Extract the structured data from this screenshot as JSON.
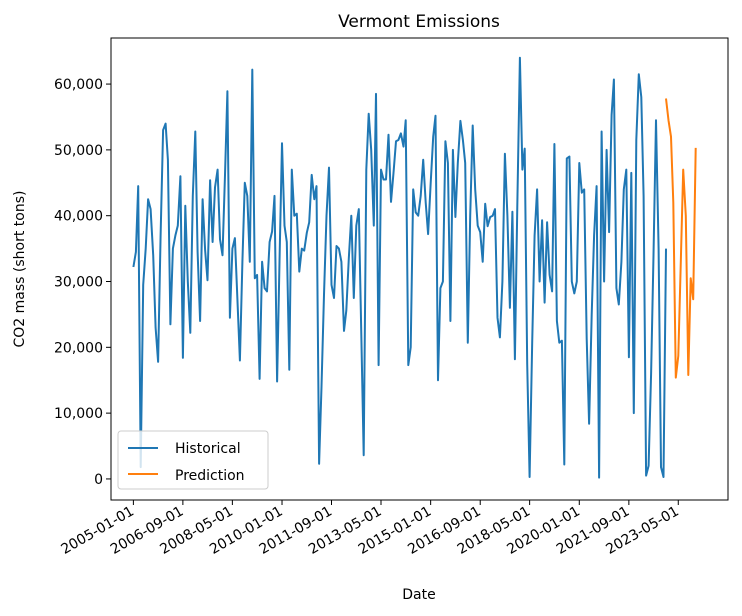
{
  "chart_data": {
    "type": "line",
    "title": "Vermont Emissions",
    "xlabel": "Date",
    "ylabel": "CO2 mass (short tons)",
    "xlim": [
      "2004-04-01",
      "2025-01-01"
    ],
    "ylim": [
      -3200,
      67000
    ],
    "x_ticks": [
      "2005-01-01",
      "2006-09-01",
      "2008-05-01",
      "2010-01-01",
      "2011-09-01",
      "2013-05-01",
      "2015-01-01",
      "2016-09-01",
      "2018-05-01",
      "2020-01-01",
      "2021-09-01",
      "2023-05-01"
    ],
    "y_ticks": [
      0,
      10000,
      20000,
      30000,
      40000,
      50000,
      60000
    ],
    "y_tick_labels": [
      "0",
      "10,000",
      "20,000",
      "30,000",
      "40,000",
      "50,000",
      "60,000"
    ],
    "grid": false,
    "legend_position": "lower-left",
    "legend": [
      "Historical",
      "Prediction"
    ],
    "series": [
      {
        "name": "Historical",
        "color": "#1f77b4",
        "start": "2005-01-01",
        "frequency": "monthly",
        "values": [
          32200,
          34500,
          44500,
          1800,
          29500,
          35000,
          42500,
          41000,
          34000,
          23000,
          17800,
          37000,
          53000,
          54000,
          48500,
          23500,
          35000,
          37000,
          38500,
          46000,
          18400,
          41500,
          30000,
          22200,
          43000,
          52800,
          34500,
          24000,
          42500,
          34800,
          30200,
          45400,
          36000,
          44300,
          47000,
          36400,
          34000,
          46200,
          58900,
          24500,
          35000,
          36600,
          27700,
          18000,
          33000,
          45000,
          43000,
          33000,
          62200,
          30500,
          31000,
          15200,
          33000,
          29000,
          28500,
          36000,
          37600,
          43000,
          14800,
          33000,
          51000,
          38500,
          36000,
          16600,
          47000,
          40000,
          40300,
          31500,
          35000,
          34700,
          37400,
          39000,
          46200,
          42500,
          44500,
          2300,
          14000,
          28000,
          40000,
          47300,
          29500,
          27500,
          35400,
          35000,
          33000,
          22500,
          25600,
          33500,
          40000,
          27500,
          38500,
          41000,
          22000,
          3600,
          47000,
          55500,
          50000,
          38500,
          58500,
          17300,
          47000,
          45500,
          45500,
          52300,
          42100,
          46500,
          51300,
          51500,
          52500,
          50500,
          54500,
          17300,
          20000,
          44000,
          40500,
          40000,
          43000,
          48500,
          42000,
          37200,
          45000,
          52000,
          55200,
          15000,
          29000,
          30000,
          51300,
          48000,
          24000,
          50000,
          39800,
          48000,
          54400,
          51500,
          48000,
          20700,
          40000,
          53700,
          44000,
          38500,
          37500,
          33000,
          41800,
          38400,
          39800,
          40000,
          41000,
          24500,
          21500,
          30000,
          49400,
          40000,
          26000,
          40600,
          18200,
          41500,
          64000,
          47000,
          50200,
          17500,
          300,
          20800,
          37000,
          44000,
          30000,
          39300,
          26800,
          39000,
          31000,
          28500,
          50900,
          24000,
          20700,
          21000,
          2200,
          48700,
          49000,
          30000,
          28200,
          30000,
          48000,
          43500,
          44000,
          21300,
          8400,
          25000,
          37000,
          44500,
          200,
          52800,
          30000,
          50000,
          37500,
          55300,
          60700,
          29000,
          26500,
          33000,
          44000,
          47000,
          18500,
          46500,
          10000,
          51500,
          61500,
          58000,
          43000,
          500,
          2000,
          16000,
          34000,
          54500,
          35000,
          1800,
          300,
          35000
        ],
        "note_values_monthly_from_start": true
      },
      {
        "name": "Prediction",
        "color": "#ff7f0e",
        "x": [
          "2022-12-01",
          "2023-01-01",
          "2023-02-01",
          "2023-03-01",
          "2023-04-01",
          "2023-05-01",
          "2023-06-01",
          "2023-07-01",
          "2023-08-01",
          "2023-09-01",
          "2023-10-01",
          "2023-11-01",
          "2023-12-01"
        ],
        "values": [
          57800,
          54500,
          52000,
          42000,
          15400,
          18700,
          33000,
          47000,
          40000,
          15800,
          30500,
          27300,
          50300
        ]
      }
    ]
  }
}
